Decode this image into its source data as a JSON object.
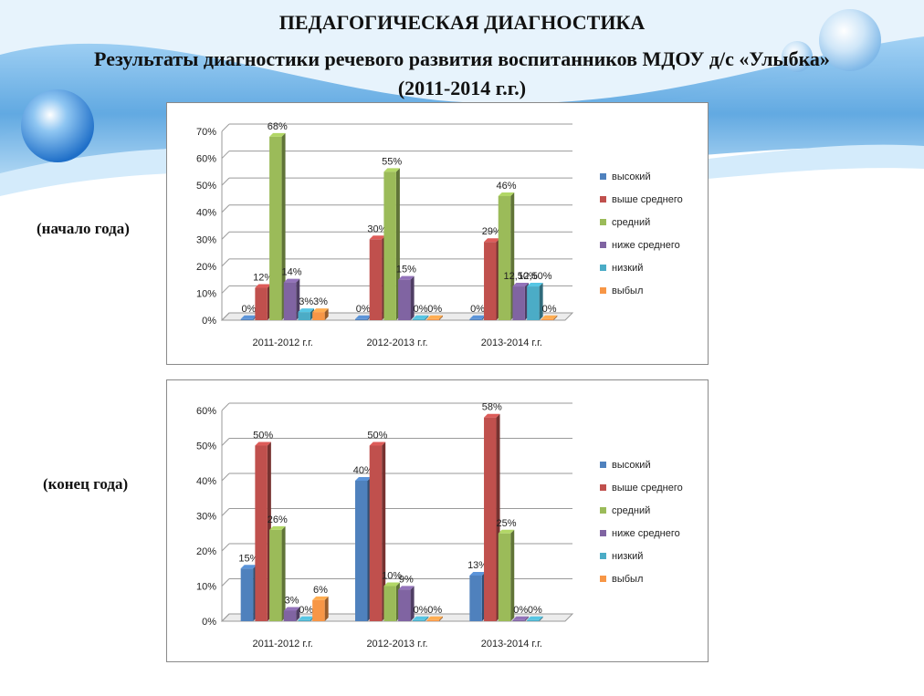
{
  "slide": {
    "title": "ПЕДАГОГИЧЕСКАЯ ДИАГНОСТИКА",
    "subtitle_line1": "Результаты диагностики речевого развития воспитанников МДОУ д/с «Улыбка»",
    "subtitle_line2": "(2011-2014 г.г.)",
    "period_start": "(начало года)",
    "period_end": "(конец года)"
  },
  "colors": {
    "high": "#4f81bd",
    "above_avg": "#c0504d",
    "avg": "#9bbb59",
    "below_avg": "#8064a2",
    "low": "#4bacc6",
    "left": "#f79646",
    "background_band": "#5aa5e0"
  },
  "chart_data": [
    {
      "type": "bar",
      "title": "",
      "xlabel": "",
      "ylabel": "",
      "ylim": [
        0,
        70
      ],
      "yticks": [
        "0%",
        "10%",
        "20%",
        "30%",
        "40%",
        "50%",
        "60%",
        "70%"
      ],
      "grid": true,
      "legend_position": "right",
      "categories": [
        "2011-2012 г.г.",
        "2012-2013 г.г.",
        "2013-2014 г.г."
      ],
      "series": [
        {
          "name": "высокий",
          "values": [
            0,
            0,
            0
          ],
          "labels": [
            "0%",
            "0%",
            "0%"
          ]
        },
        {
          "name": "выше среднего",
          "values": [
            12,
            30,
            29
          ],
          "labels": [
            "12%",
            "30%",
            "29%"
          ]
        },
        {
          "name": "средний",
          "values": [
            68,
            55,
            46
          ],
          "labels": [
            "68%",
            "55%",
            "46%"
          ]
        },
        {
          "name": "ниже среднего",
          "values": [
            14,
            15,
            12.5
          ],
          "labels": [
            "14%",
            "15%",
            "12,50%"
          ]
        },
        {
          "name": "низкий",
          "values": [
            3,
            0,
            12.5
          ],
          "labels": [
            "3%",
            "0%",
            "12,50%"
          ]
        },
        {
          "name": "выбыл",
          "values": [
            3,
            0,
            0
          ],
          "labels": [
            "3%",
            "0%",
            "0%"
          ]
        }
      ]
    },
    {
      "type": "bar",
      "title": "",
      "xlabel": "",
      "ylabel": "",
      "ylim": [
        0,
        60
      ],
      "yticks": [
        "0%",
        "10%",
        "20%",
        "30%",
        "40%",
        "50%",
        "60%"
      ],
      "grid": true,
      "legend_position": "right",
      "categories": [
        "2011-2012 г.г.",
        "2012-2013 г.г.",
        "2013-2014 г.г."
      ],
      "series": [
        {
          "name": "высокий",
          "values": [
            15,
            40,
            13
          ],
          "labels": [
            "15%",
            "40%",
            "13%"
          ]
        },
        {
          "name": "выше среднего",
          "values": [
            50,
            50,
            58
          ],
          "labels": [
            "50%",
            "50%",
            "58%"
          ]
        },
        {
          "name": "средний",
          "values": [
            26,
            10,
            25
          ],
          "labels": [
            "26%",
            "10%",
            "25%"
          ]
        },
        {
          "name": "ниже среднего",
          "values": [
            3,
            9,
            0
          ],
          "labels": [
            "3%",
            "9%",
            "0%"
          ]
        },
        {
          "name": "низкий",
          "values": [
            0,
            0,
            0
          ],
          "labels": [
            "0%",
            "0%",
            "0%"
          ]
        },
        {
          "name": "выбыл",
          "values": [
            6,
            0,
            null
          ],
          "labels": [
            "6%",
            "0%",
            ""
          ]
        }
      ]
    }
  ]
}
